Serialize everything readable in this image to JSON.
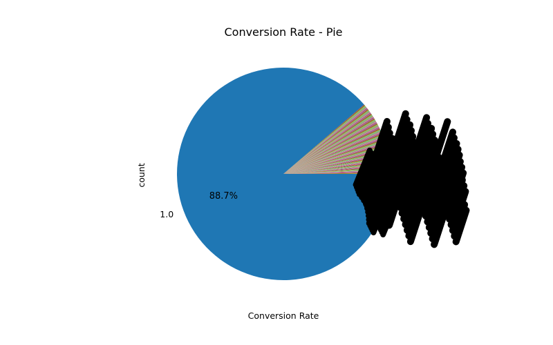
{
  "chart_data": {
    "type": "pie",
    "title": "Conversion Rate - Pie",
    "xlabel": "Conversion Rate",
    "ylabel": "count",
    "slices": [
      {
        "label": "1.0",
        "percent": 88.7,
        "color": "#1f77b4"
      }
    ],
    "other_slices": {
      "percent_total": 11.3,
      "count": 120,
      "colors": [
        "#ff7f0e",
        "#2ca02c",
        "#d62728",
        "#9467bd",
        "#8c564b",
        "#e377c2",
        "#7f7f7f",
        "#bcbd22",
        "#17becf"
      ],
      "label_color": "#000000"
    },
    "start_angle_deg": 0,
    "direction": "counterclockwise",
    "legend": "none"
  }
}
